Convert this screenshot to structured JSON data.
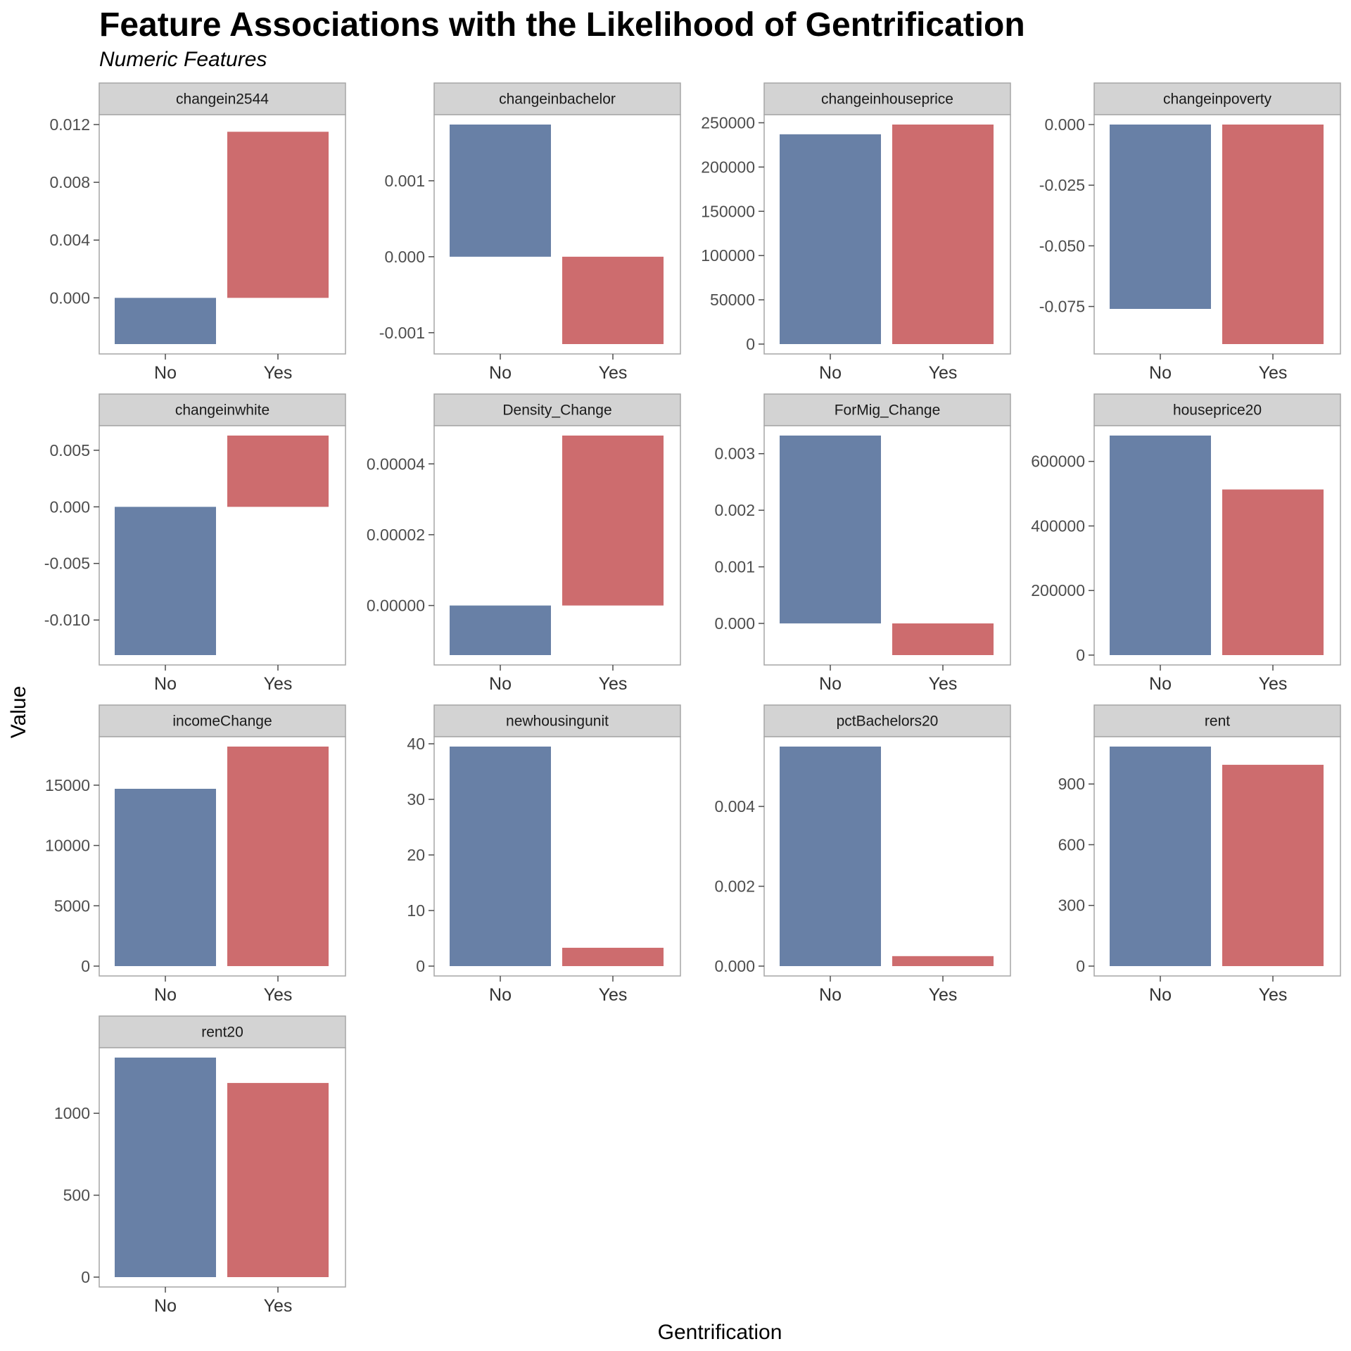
{
  "title": "Feature Associations with the Likelihood of Gentrification",
  "subtitle": "Numeric Features",
  "colors": {
    "No": "#6880a6",
    "Yes": "#cd6c6e",
    "strip": "#d3d3d3",
    "panel_border": "#a6a6a6"
  },
  "chart_data": {
    "type": "bar",
    "layout": "faceted",
    "columns": 4,
    "xlabel": "Gentrification",
    "ylabel": "Value",
    "categories": [
      "No",
      "Yes"
    ],
    "grid": false,
    "legend": "none",
    "panels": [
      {
        "name": "changein2544",
        "values": [
          -0.0032,
          0.0115
        ],
        "ylim": [
          -0.0032,
          0.012
        ],
        "ticks": [
          0.0,
          0.004,
          0.008,
          0.012
        ],
        "tick_labels": [
          "0.000",
          "0.004",
          "0.008",
          "0.012"
        ]
      },
      {
        "name": "changeinbachelor",
        "values": [
          0.00174,
          -0.00115
        ],
        "ylim": [
          -0.00115,
          0.00174
        ],
        "ticks": [
          -0.001,
          0.0,
          0.001
        ],
        "tick_labels": [
          "-0.001",
          "0.000",
          "0.001"
        ]
      },
      {
        "name": "changeinhouseprice",
        "values": [
          237000,
          248000
        ],
        "ylim": [
          0,
          248000
        ],
        "ticks": [
          0,
          50000,
          100000,
          150000,
          200000,
          250000
        ],
        "tick_labels": [
          "0",
          "50000",
          "100000",
          "150000",
          "200000",
          "250000"
        ]
      },
      {
        "name": "changeinpoverty",
        "values": [
          -0.076,
          -0.0905
        ],
        "ylim": [
          -0.0905,
          0
        ],
        "ticks": [
          -0.075,
          -0.05,
          -0.025,
          0.0
        ],
        "tick_labels": [
          "-0.075",
          "-0.050",
          "-0.025",
          "0.000"
        ]
      },
      {
        "name": "changeinwhite",
        "values": [
          -0.0131,
          0.0063
        ],
        "ylim": [
          -0.0131,
          0.0063
        ],
        "ticks": [
          -0.01,
          -0.005,
          0.0,
          0.005
        ],
        "tick_labels": [
          "-0.010",
          "-0.005",
          "0.000",
          "0.005"
        ]
      },
      {
        "name": "Density_Change",
        "values": [
          -1.4e-05,
          4.8e-05
        ],
        "ylim": [
          -1.4e-05,
          4.8e-05
        ],
        "ticks": [
          0.0,
          2e-05,
          4e-05
        ],
        "tick_labels": [
          "0.00000",
          "0.00002",
          "0.00004"
        ]
      },
      {
        "name": "ForMig_Change",
        "values": [
          0.00332,
          -0.00056
        ],
        "ylim": [
          -0.00056,
          0.00332
        ],
        "ticks": [
          0.0,
          0.001,
          0.002,
          0.003
        ],
        "tick_labels": [
          "0.000",
          "0.001",
          "0.002",
          "0.003"
        ]
      },
      {
        "name": "houseprice20",
        "values": [
          680000,
          513000
        ],
        "ylim": [
          0,
          680000
        ],
        "ticks": [
          0,
          200000,
          400000,
          600000
        ],
        "tick_labels": [
          "0",
          "200000",
          "400000",
          "600000"
        ]
      },
      {
        "name": "incomeChange",
        "values": [
          14700,
          18200
        ],
        "ylim": [
          0,
          18200
        ],
        "ticks": [
          0,
          5000,
          10000,
          15000
        ],
        "tick_labels": [
          "0",
          "5000",
          "10000",
          "15000"
        ]
      },
      {
        "name": "newhousingunit",
        "values": [
          39.5,
          3.3
        ],
        "ylim": [
          0,
          39.5
        ],
        "ticks": [
          0,
          10,
          20,
          30,
          40
        ],
        "tick_labels": [
          "0",
          "10",
          "20",
          "30",
          "40"
        ]
      },
      {
        "name": "pctBachelors20",
        "values": [
          0.0055,
          0.00025
        ],
        "ylim": [
          0,
          0.0055
        ],
        "ticks": [
          0.0,
          0.002,
          0.004
        ],
        "tick_labels": [
          "0.000",
          "0.002",
          "0.004"
        ]
      },
      {
        "name": "rent",
        "values": [
          1085,
          995
        ],
        "ylim": [
          0,
          1085
        ],
        "ticks": [
          0,
          300,
          600,
          900
        ],
        "tick_labels": [
          "0",
          "300",
          "600",
          "900"
        ]
      },
      {
        "name": "rent20",
        "values": [
          1340,
          1185
        ],
        "ylim": [
          0,
          1340
        ],
        "ticks": [
          0,
          500,
          1000
        ],
        "tick_labels": [
          "0",
          "500",
          "1000"
        ]
      }
    ]
  }
}
